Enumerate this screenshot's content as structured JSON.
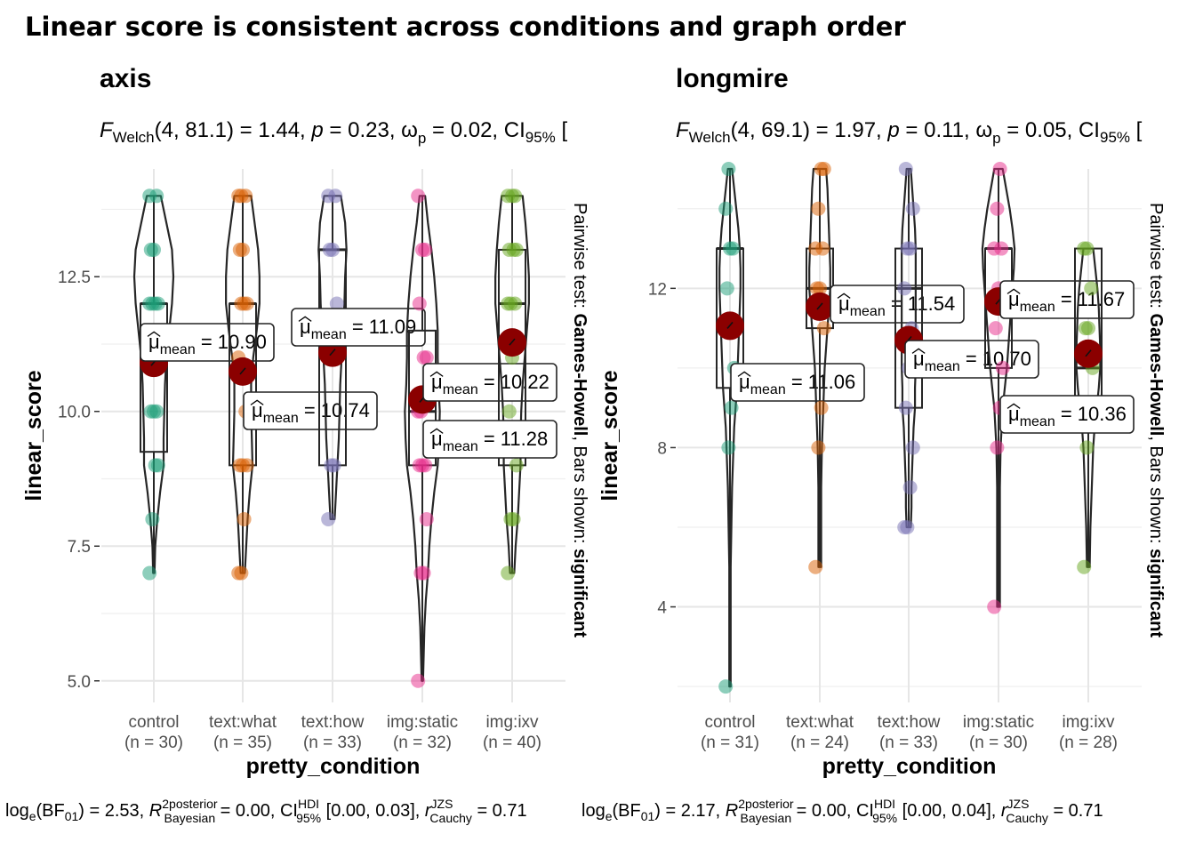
{
  "title": "Linear score is consistent across conditions and graph order",
  "chart_data": [
    {
      "type": "violin-box-scatter",
      "panel_title": "axis",
      "stat_subtitle": {
        "test": "Welch",
        "df": "(4, 81.1)",
        "statistic": "1.44",
        "p": "0.23",
        "effect_size": "0.02",
        "ci_label": "CI",
        "ci_sub": "95%"
      },
      "xlabel": "pretty_condition",
      "ylabel": "linear_score",
      "ylim": [
        4.6,
        14.5
      ],
      "y_ticks": [
        5.0,
        7.5,
        10.0,
        12.5
      ],
      "y_tick_labels": [
        "5.0",
        "7.5",
        "10.0",
        "12.5"
      ],
      "y_minor_ticks": [
        6.25,
        8.75,
        11.25,
        13.75
      ],
      "right_annotation": {
        "prefix": "Pairwise test: ",
        "method": "Games-Howell",
        "middle": ", Bars shown: ",
        "shown": "significant"
      },
      "groups": [
        {
          "label": "control",
          "n_label": "(n = 30)",
          "color": "#1B9E77",
          "mean": 10.9,
          "mean_label": "10.90",
          "box": {
            "q1": 9.25,
            "median": 12.0,
            "q3": 12.0,
            "whisker_low": 7.0,
            "whisker_high": 14.0
          },
          "density": [
            [
              7,
              1
            ],
            [
              7.5,
              2
            ],
            [
              8,
              5
            ],
            [
              8.5,
              9
            ],
            [
              9,
              14
            ],
            [
              9.5,
              14
            ],
            [
              10,
              15
            ],
            [
              10.5,
              16
            ],
            [
              11,
              18
            ],
            [
              11.5,
              22
            ],
            [
              12,
              26
            ],
            [
              12.5,
              28
            ],
            [
              13,
              26
            ],
            [
              13.5,
              18
            ],
            [
              14,
              10
            ]
          ],
          "points": [
            7,
            8,
            9,
            9,
            10,
            10,
            10,
            12,
            12,
            12,
            12,
            13,
            13,
            14,
            14
          ]
        },
        {
          "label": "text:what",
          "n_label": "(n = 35)",
          "color": "#D95F02",
          "mean": 10.74,
          "mean_label": "10.74",
          "box": {
            "q1": 9.0,
            "median": 12.0,
            "q3": 12.0,
            "whisker_low": 7.0,
            "whisker_high": 14.0
          },
          "density": [
            [
              7,
              3
            ],
            [
              7.5,
              5
            ],
            [
              8,
              7
            ],
            [
              8.5,
              10
            ],
            [
              9,
              14
            ],
            [
              9.5,
              13
            ],
            [
              10,
              12
            ],
            [
              10.5,
              12
            ],
            [
              11,
              15
            ],
            [
              11.5,
              20
            ],
            [
              12,
              24
            ],
            [
              12.5,
              24
            ],
            [
              13,
              22
            ],
            [
              13.5,
              17
            ],
            [
              14,
              12
            ]
          ],
          "points": [
            7,
            7,
            8,
            9,
            9,
            9,
            10,
            11,
            12,
            12,
            12,
            13,
            13,
            14,
            14,
            14
          ]
        },
        {
          "label": "text:how",
          "n_label": "(n = 33)",
          "color": "#7570B3",
          "mean": 11.09,
          "mean_label": "11.09",
          "box": {
            "q1": 9.0,
            "median": 13.0,
            "q3": 13.0,
            "whisker_low": 8.0,
            "whisker_high": 14.0
          },
          "density": [
            [
              8,
              3
            ],
            [
              8.5,
              5
            ],
            [
              9,
              7
            ],
            [
              9.5,
              9
            ],
            [
              10,
              10
            ],
            [
              10.5,
              11
            ],
            [
              11,
              13
            ],
            [
              11.5,
              15
            ],
            [
              12,
              17
            ],
            [
              12.5,
              18
            ],
            [
              13,
              20
            ],
            [
              13.5,
              18
            ],
            [
              14,
              12
            ]
          ],
          "points": [
            8,
            9,
            9,
            12,
            13,
            13,
            14,
            14
          ]
        },
        {
          "label": "img:static",
          "n_label": "(n = 32)",
          "color": "#E7298A",
          "mean": 10.22,
          "mean_label": "10.22",
          "box": {
            "q1": 9.0,
            "median": 10.0,
            "q3": 11.5,
            "whisker_low": 5.0,
            "whisker_high": 14.0
          },
          "density": [
            [
              5,
              1
            ],
            [
              5.5,
              2
            ],
            [
              6,
              3
            ],
            [
              6.5,
              5
            ],
            [
              7,
              8
            ],
            [
              7.5,
              10
            ],
            [
              8,
              13
            ],
            [
              8.5,
              17
            ],
            [
              9,
              22
            ],
            [
              9.5,
              24
            ],
            [
              10,
              25
            ],
            [
              10.5,
              23
            ],
            [
              11,
              22
            ],
            [
              11.5,
              22
            ],
            [
              12,
              20
            ],
            [
              12.5,
              17
            ],
            [
              13,
              13
            ],
            [
              13.5,
              8
            ],
            [
              14,
              4
            ]
          ],
          "points": [
            5,
            7,
            7,
            8,
            9,
            9,
            9,
            10,
            10,
            11,
            11,
            12,
            13,
            13,
            14
          ]
        },
        {
          "label": "img:ixv",
          "n_label": "(n = 40)",
          "color": "#66A61E",
          "mean": 11.28,
          "mean_label": "11.28",
          "box": {
            "q1": 9.0,
            "median": 12.0,
            "q3": 13.0,
            "whisker_low": 7.0,
            "whisker_high": 14.0
          },
          "density": [
            [
              7,
              3
            ],
            [
              7.5,
              5
            ],
            [
              8,
              8
            ],
            [
              8.5,
              10
            ],
            [
              9,
              12
            ],
            [
              9.5,
              12
            ],
            [
              10,
              13
            ],
            [
              10.5,
              15
            ],
            [
              11,
              18
            ],
            [
              11.5,
              21
            ],
            [
              12,
              24
            ],
            [
              12.5,
              24
            ],
            [
              13,
              22
            ],
            [
              13.5,
              19
            ],
            [
              14,
              15
            ]
          ],
          "points": [
            7,
            8,
            8,
            9,
            10,
            11,
            12,
            12,
            12,
            13,
            13,
            13,
            14,
            14,
            14
          ]
        }
      ],
      "caption": {
        "bf": "2.53",
        "r2": "0.00",
        "ci": "[0.00, 0.03]",
        "r_cauchy": "0.71"
      }
    },
    {
      "type": "violin-box-scatter",
      "panel_title": "longmire",
      "stat_subtitle": {
        "test": "Welch",
        "df": "(4, 69.1)",
        "statistic": "1.97",
        "p": "0.11",
        "effect_size": "0.05",
        "ci_label": "CI",
        "ci_sub": "95%"
      },
      "xlabel": "pretty_condition",
      "ylabel": "linear_score",
      "ylim": [
        1.6,
        15.0
      ],
      "y_ticks": [
        4,
        8,
        12
      ],
      "y_tick_labels": [
        "4",
        "8",
        "12"
      ],
      "y_minor_ticks": [
        2,
        6,
        10,
        14
      ],
      "right_annotation": {
        "prefix": "Pairwise test: ",
        "method": "Games-Howell",
        "middle": ", Bars shown: ",
        "shown": "significant"
      },
      "groups": [
        {
          "label": "control",
          "n_label": "(n = 31)",
          "color": "#1B9E77",
          "mean": 11.06,
          "mean_label": "11.06",
          "box": {
            "q1": 9.5,
            "median": 13.0,
            "q3": 13.0,
            "whisker_low": 2.0,
            "whisker_high": 15.0
          },
          "density": [
            [
              2,
              1
            ],
            [
              3,
              1
            ],
            [
              4,
              1
            ],
            [
              5,
              1
            ],
            [
              6,
              2
            ],
            [
              7,
              3
            ],
            [
              8,
              5
            ],
            [
              8.5,
              6
            ],
            [
              9,
              8
            ],
            [
              9.5,
              10
            ],
            [
              10,
              11
            ],
            [
              10.5,
              12
            ],
            [
              11,
              13
            ],
            [
              11.5,
              14
            ],
            [
              12,
              15
            ],
            [
              12.5,
              15
            ],
            [
              13,
              14
            ],
            [
              13.5,
              12
            ],
            [
              14,
              9
            ],
            [
              14.5,
              6
            ],
            [
              15,
              3
            ]
          ],
          "points": [
            2,
            8,
            9,
            10,
            12,
            13,
            13,
            14,
            15
          ]
        },
        {
          "label": "text:what",
          "n_label": "(n = 24)",
          "color": "#D95F02",
          "mean": 11.54,
          "mean_label": "11.54",
          "box": {
            "q1": 11.0,
            "median": 12.0,
            "q3": 13.0,
            "whisker_low": 5.0,
            "whisker_high": 15.0
          },
          "density": [
            [
              5,
              2
            ],
            [
              6,
              2
            ],
            [
              7,
              2
            ],
            [
              8,
              3
            ],
            [
              9,
              5
            ],
            [
              10,
              7
            ],
            [
              10.5,
              9
            ],
            [
              11,
              11
            ],
            [
              11.5,
              13
            ],
            [
              12,
              15
            ],
            [
              12.5,
              15
            ],
            [
              13,
              14
            ],
            [
              13.5,
              13
            ],
            [
              14,
              12
            ],
            [
              14.5,
              11
            ],
            [
              15,
              9
            ]
          ],
          "points": [
            5,
            8,
            9,
            11,
            12,
            12,
            13,
            13,
            14,
            15,
            15
          ]
        },
        {
          "label": "text:how",
          "n_label": "(n = 33)",
          "color": "#7570B3",
          "mean": 10.7,
          "mean_label": "10.70",
          "box": {
            "q1": 9.0,
            "median": 12.0,
            "q3": 13.0,
            "whisker_low": 6.0,
            "whisker_high": 15.0
          },
          "density": [
            [
              6,
              3
            ],
            [
              6.5,
              4
            ],
            [
              7,
              4
            ],
            [
              7.5,
              5
            ],
            [
              8,
              6
            ],
            [
              8.5,
              7
            ],
            [
              9,
              9
            ],
            [
              9.5,
              9
            ],
            [
              10,
              10
            ],
            [
              10.5,
              10
            ],
            [
              11,
              10
            ],
            [
              11.5,
              10
            ],
            [
              12,
              10
            ],
            [
              12.5,
              10
            ],
            [
              13,
              10
            ],
            [
              13.5,
              9
            ],
            [
              14,
              7
            ],
            [
              14.5,
              5
            ],
            [
              15,
              3
            ]
          ],
          "points": [
            6,
            6,
            7,
            8,
            9,
            10,
            11,
            12,
            13,
            13,
            14,
            15
          ]
        },
        {
          "label": "img:static",
          "n_label": "(n = 30)",
          "color": "#E7298A",
          "mean": 11.67,
          "mean_label": "11.67",
          "box": {
            "q1": 10.0,
            "median": 13.0,
            "q3": 13.0,
            "whisker_low": 4.0,
            "whisker_high": 15.0
          },
          "density": [
            [
              4,
              2
            ],
            [
              5,
              2
            ],
            [
              6,
              2
            ],
            [
              7,
              2
            ],
            [
              8,
              3
            ],
            [
              9,
              6
            ],
            [
              9.5,
              9
            ],
            [
              10,
              12
            ],
            [
              10.5,
              14
            ],
            [
              11,
              16
            ],
            [
              11.5,
              18
            ],
            [
              12,
              20
            ],
            [
              12.5,
              22
            ],
            [
              13,
              23
            ],
            [
              13.5,
              20
            ],
            [
              14,
              16
            ],
            [
              14.5,
              11
            ],
            [
              15,
              6
            ]
          ],
          "points": [
            4,
            8,
            9,
            10,
            11,
            12,
            13,
            13,
            14,
            15
          ]
        },
        {
          "label": "img:ixv",
          "n_label": "(n = 28)",
          "color": "#66A61E",
          "mean": 10.36,
          "mean_label": "10.36",
          "box": {
            "q1": 9.0,
            "median": 10.0,
            "q3": 13.0,
            "whisker_low": 5.0,
            "whisker_high": 13.0
          },
          "density": [
            [
              5,
              2
            ],
            [
              6,
              3
            ],
            [
              7,
              5
            ],
            [
              8,
              7
            ],
            [
              8.5,
              9
            ],
            [
              9,
              12
            ],
            [
              9.5,
              15
            ],
            [
              10,
              17
            ],
            [
              10.5,
              17
            ],
            [
              11,
              16
            ],
            [
              11.5,
              15
            ],
            [
              12,
              13
            ],
            [
              12.5,
              10
            ],
            [
              13,
              7
            ]
          ],
          "points": [
            5,
            8,
            9,
            10,
            11,
            11,
            12,
            13,
            13
          ]
        }
      ],
      "caption": {
        "bf": "2.17",
        "r2": "0.00",
        "ci": "[0.00, 0.04]",
        "r_cauchy": "0.71"
      }
    }
  ]
}
